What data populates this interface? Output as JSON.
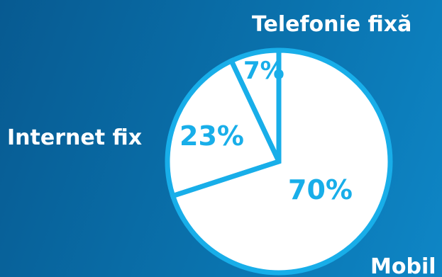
{
  "chart_data": {
    "type": "pie",
    "title": "",
    "slices": [
      {
        "label": "Telefonie fixă",
        "value": 7,
        "value_label": "7%"
      },
      {
        "label": "Internet fix",
        "value": 23,
        "value_label": "23%"
      },
      {
        "label": "Mobil",
        "value": 70,
        "value_label": "70%"
      }
    ],
    "slice_fill": "#ffffff",
    "outline_color": "#18aee9",
    "label_color": "#ffffff",
    "value_label_color": "#18aee9",
    "background": [
      "#075a91",
      "#0e86c6"
    ]
  }
}
